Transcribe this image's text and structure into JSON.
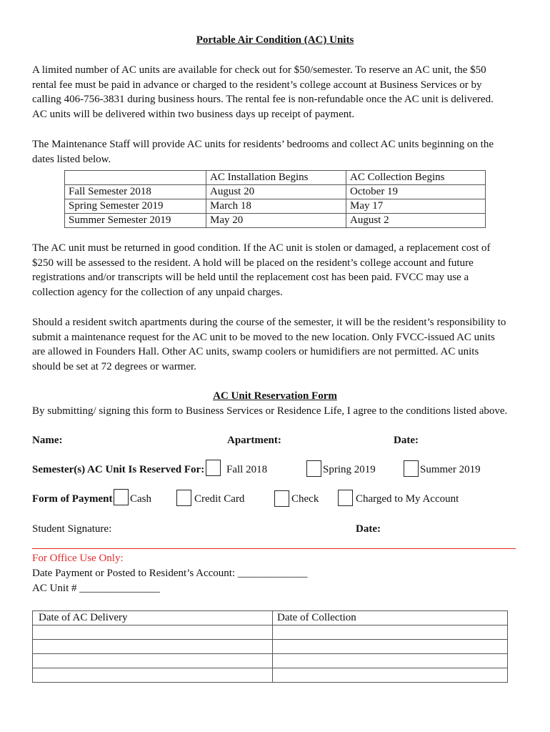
{
  "title": "Portable Air Condition (AC) Units",
  "paragraph1": [
    "A limited number of AC units are available for check out for $50/semester.  To reserve an AC unit, the $50",
    "rental fee must be paid in advance or charged to the resident’s college account at Business Services or by",
    "calling 406-756-3831 during business hours.  The rental fee is non-refundable once the AC unit is delivered.",
    "AC units will be delivered within two business days up receipt of payment."
  ],
  "paragraph2": [
    "The Maintenance Staff will provide AC units for residents’ bedrooms and collect AC units beginning on the",
    "dates listed below."
  ],
  "schedule_table": {
    "headers": [
      "",
      "AC Installation Begins",
      "AC Collection Begins"
    ],
    "rows": [
      [
        "Fall Semester 2018",
        "August 20",
        "October 19"
      ],
      [
        "Spring Semester 2019",
        "March 18",
        "May 17"
      ],
      [
        "Summer Semester 2019",
        "May 20",
        "August 2"
      ]
    ]
  },
  "paragraph3": [
    "The AC unit must be returned in good condition.  If the AC unit is stolen or damaged, a replacement cost of",
    "$250 will be assessed to the resident.  A hold will be placed on the resident’s college account and future",
    "registrations and/or transcripts will be held until the replacement cost has been paid.  FVCC may use a",
    "collection agency for the collection of any unpaid charges."
  ],
  "paragraph4": [
    "Should a resident switch apartments during the course of the semester, it will be the resident’s responsibility to",
    "submit a maintenance request for the AC unit to be moved to the new location. Only FVCC-issued AC units",
    "are allowed in Founders Hall.  Other AC units, swamp coolers or humidifiers are not permitted.  AC units",
    "should be set at 72 degrees or warmer."
  ],
  "form": {
    "title": "AC Unit Reservation Form",
    "intro": "By submitting/ signing this form to Business Services or Residence Life, I agree to the conditions listed above.",
    "name_label": "Name:",
    "apartment_label": "Apartment:",
    "date_label": "Date:",
    "semester_label": "Semester(s) AC Unit Is Reserved For:",
    "semester_options": [
      "Fall 2018",
      "Spring 2019",
      "Summer 2019"
    ],
    "payment_label": "Form of Payment:",
    "payment_options": [
      "Cash",
      "Credit Card",
      "Check",
      "Charged to My Account"
    ],
    "signature_label": "Student Signature:",
    "signature_date_label": "Date:"
  },
  "office": {
    "heading": "For Office Use Only:",
    "payment_date_line": "Date Payment or Posted to Resident’s Account: _____________",
    "ac_unit_line": "AC Unit # _______________",
    "colors": {
      "heading": "#e5292b",
      "divider": "#e5292b"
    },
    "table_headers": [
      "Date of AC Delivery",
      "Date of Collection"
    ],
    "empty_rows": 4
  }
}
